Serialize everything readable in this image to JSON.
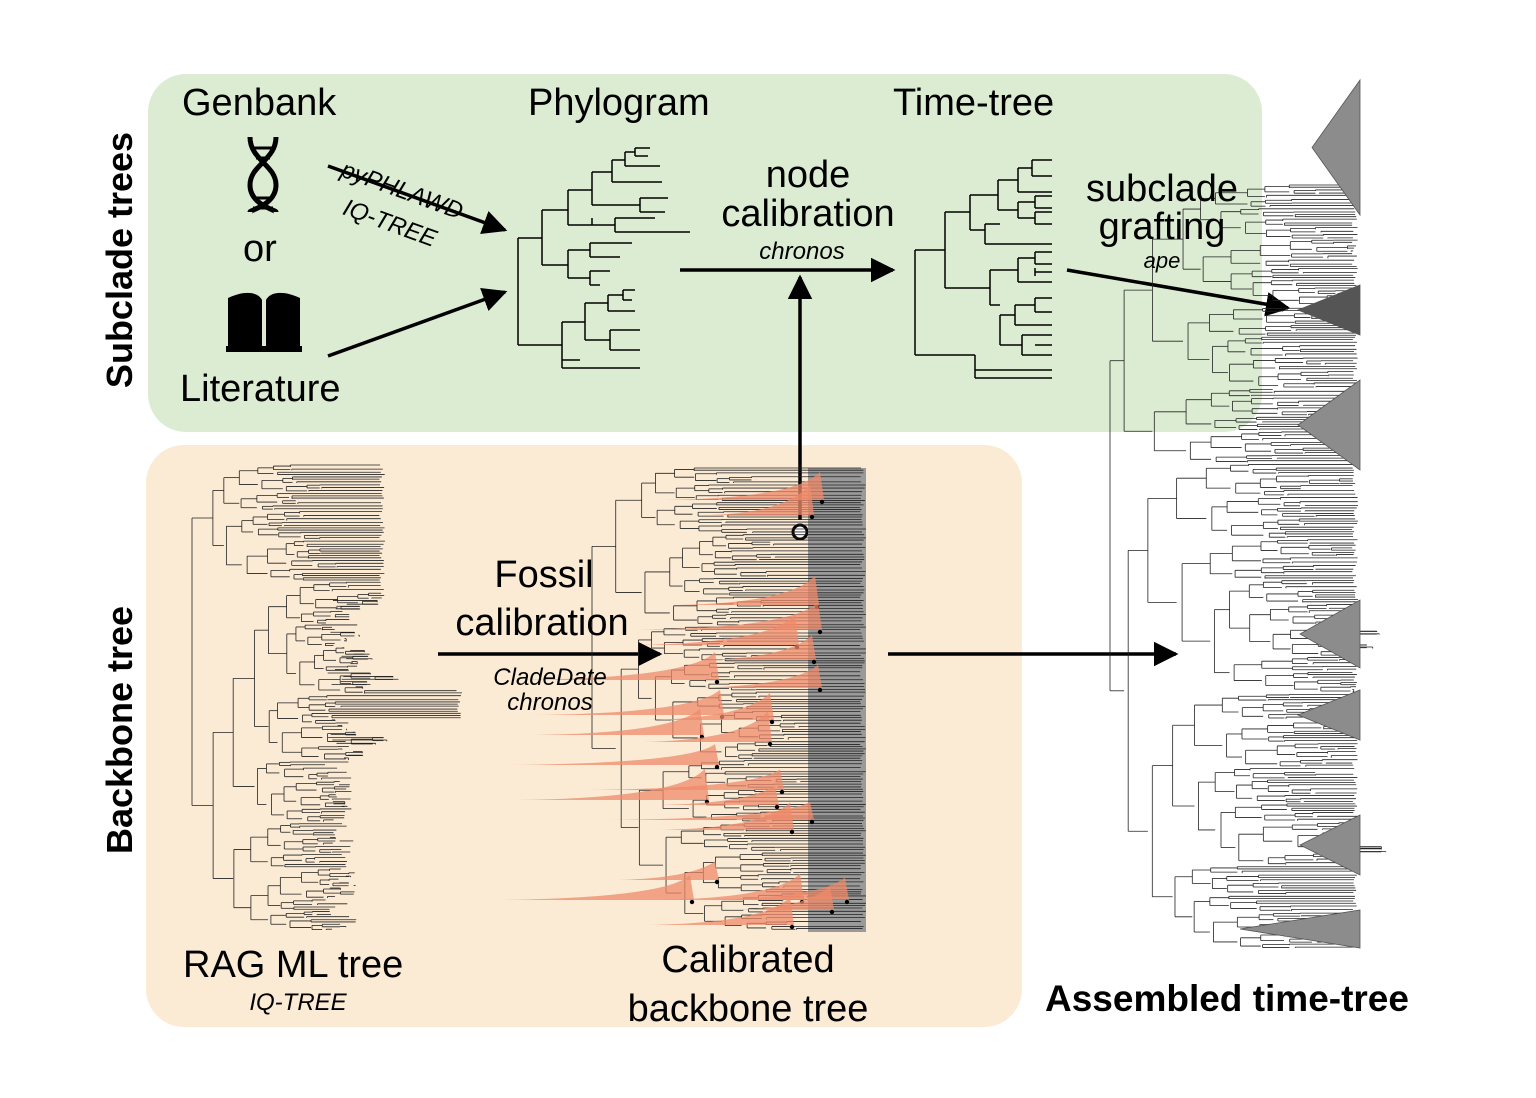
{
  "subclade": {
    "section_label": "Subclade trees",
    "genbank_label": "Genbank",
    "or_label": "or",
    "literature_label": "Literature",
    "tool_pyphlawd": "pyPHLAWD",
    "tool_iqtree": "IQ-TREE",
    "phylogram_label": "Phylogram",
    "node_cal_line1": "node",
    "node_cal_line2": "calibration",
    "node_cal_tool": "chronos",
    "timetree_label": "Time-tree",
    "grafting_line1": "subclade",
    "grafting_line2": "grafting",
    "grafting_tool": "ape",
    "icons": [
      "dna-icon",
      "book-icon"
    ]
  },
  "backbone": {
    "section_label": "Backbone tree",
    "rag_label": "RAG ML tree",
    "rag_tool": "IQ-TREE",
    "fossil_line1": "Fossil",
    "fossil_line2": "calibration",
    "fossil_tool1": "CladeDate",
    "fossil_tool2": "chronos",
    "calibrated_line1": "Calibrated",
    "calibrated_line2": "backbone tree"
  },
  "assembled": {
    "label": "Assembled time-tree"
  },
  "colors": {
    "subclade_panel": "#dcecd3",
    "backbone_panel": "#fbebd5",
    "calibration_density": "#ef8a6a",
    "collapsed_clade": "#8c8c8c",
    "collapsed_clade_dark": "#555555"
  }
}
